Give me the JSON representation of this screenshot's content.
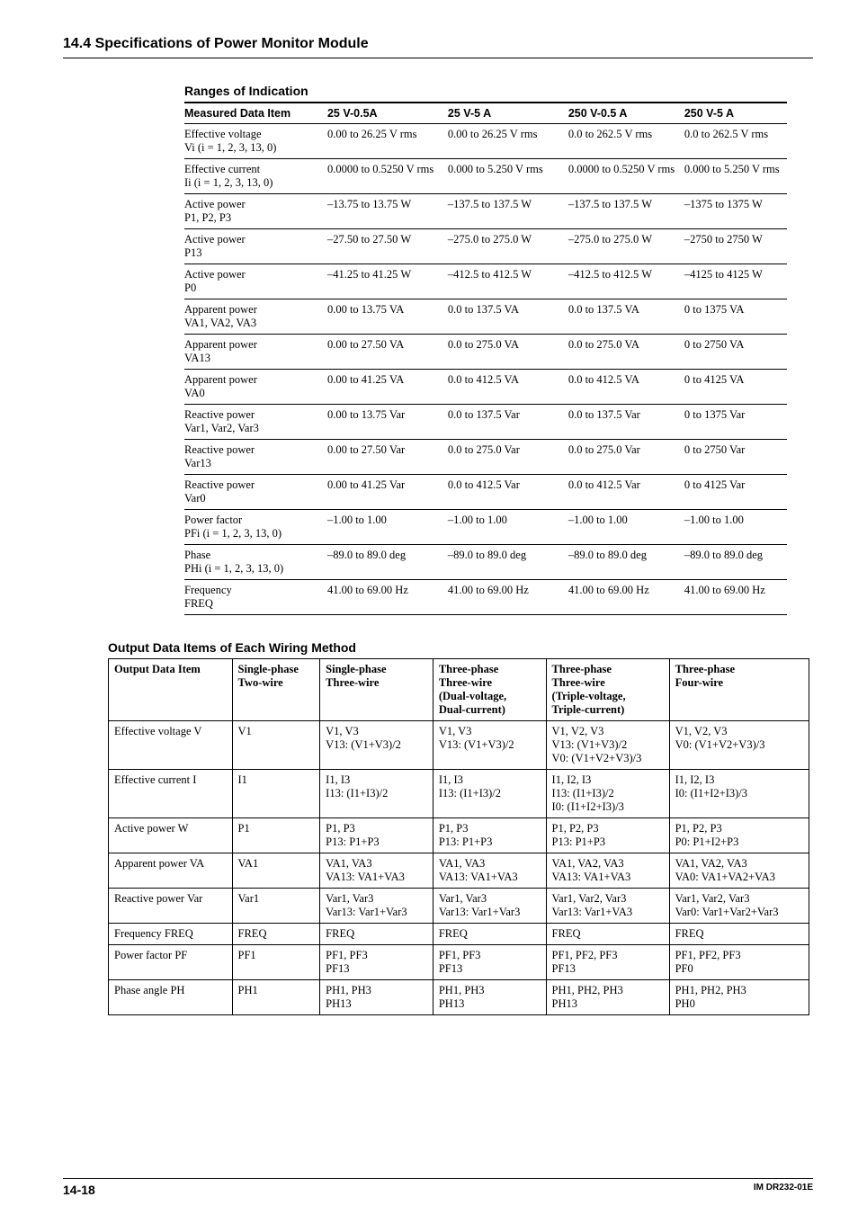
{
  "section_title": "14.4  Specifications of Power Monitor Module",
  "ranges_title": "Ranges of Indication",
  "ranges_table": {
    "columns": [
      "Measured Data Item",
      "25 V-0.5A",
      "25 V-5 A",
      "250 V-0.5 A",
      "250 V-5 A"
    ],
    "rows": [
      [
        "Effective voltage\nVi (i = 1, 2, 3, 13, 0)",
        "0.00 to 26.25 V rms",
        "0.00 to 26.25 V rms",
        "0.0 to 262.5 V rms",
        "0.0 to 262.5 V rms"
      ],
      [
        "Effective current\nIi (i = 1, 2, 3, 13, 0)",
        "0.0000 to 0.5250 V rms",
        "0.000 to 5.250 V rms",
        "0.0000 to 0.5250 V rms",
        "0.000 to 5.250 V rms"
      ],
      [
        "Active power\nP1, P2, P3",
        "–13.75 to 13.75 W",
        "–137.5 to 137.5 W",
        "–137.5 to 137.5 W",
        "–1375 to 1375 W"
      ],
      [
        "Active power\nP13",
        "–27.50 to 27.50 W",
        "–275.0 to 275.0 W",
        "–275.0 to 275.0 W",
        "–2750 to 2750 W"
      ],
      [
        "Active power\nP0",
        "–41.25 to 41.25 W",
        "–412.5 to 412.5 W",
        "–412.5 to 412.5 W",
        "–4125 to 4125 W"
      ],
      [
        "Apparent power\nVA1, VA2, VA3",
        "0.00 to 13.75 VA",
        "0.0 to 137.5 VA",
        "0.0 to 137.5 VA",
        "0 to 1375 VA"
      ],
      [
        "Apparent power\nVA13",
        "0.00 to 27.50 VA",
        "0.0 to 275.0 VA",
        "0.0 to 275.0 VA",
        "0 to 2750 VA"
      ],
      [
        "Apparent power\nVA0",
        "0.00 to 41.25 VA",
        "0.0 to 412.5 VA",
        "0.0 to 412.5 VA",
        "0 to 4125 VA"
      ],
      [
        "Reactive power\nVar1, Var2, Var3",
        "0.00 to 13.75 Var",
        "0.0 to 137.5 Var",
        "0.0 to 137.5 Var",
        "0 to 1375 Var"
      ],
      [
        "Reactive power\nVar13",
        "0.00 to 27.50 Var",
        "0.0 to 275.0 Var",
        "0.0 to 275.0 Var",
        "0 to 2750 Var"
      ],
      [
        "Reactive power\nVar0",
        "0.00 to 41.25 Var",
        "0.0 to 412.5 Var",
        "0.0 to 412.5 Var",
        "0 to 4125 Var"
      ],
      [
        "Power factor\nPFi (i = 1, 2, 3, 13, 0)",
        "–1.00 to 1.00",
        "–1.00 to 1.00",
        "–1.00 to 1.00",
        "–1.00 to 1.00"
      ],
      [
        "Phase\nPHi (i = 1, 2, 3, 13, 0)",
        "–89.0 to 89.0 deg",
        "–89.0 to 89.0 deg",
        "–89.0 to 89.0 deg",
        "–89.0 to 89.0 deg"
      ],
      [
        "Frequency\nFREQ",
        "41.00 to 69.00 Hz",
        "41.00 to 69.00 Hz",
        "41.00 to 69.00 Hz",
        "41.00 to 69.00 Hz"
      ]
    ]
  },
  "output_title": "Output Data Items of Each Wiring Method",
  "output_table": {
    "columns": [
      "Output Data Item",
      "Single-phase\nTwo-wire",
      "Single-phase\nThree-wire",
      "Three-phase\nThree-wire\n(Dual-voltage,\nDual-current)",
      "Three-phase\nThree-wire\n(Triple-voltage,\nTriple-current)",
      "Three-phase\nFour-wire"
    ],
    "rows": [
      [
        "Effective voltage V",
        "V1",
        "V1, V3\nV13:  (V1+V3)/2",
        "V1, V3\nV13:  (V1+V3)/2",
        "V1, V2, V3\nV13:  (V1+V3)/2\nV0:  (V1+V2+V3)/3",
        "V1, V2, V3\nV0:  (V1+V2+V3)/3"
      ],
      [
        "Effective current I",
        "I1",
        "I1, I3\nI13:  (I1+I3)/2",
        "I1, I3\nI13:  (I1+I3)/2",
        "I1, I2, I3\nI13:  (I1+I3)/2\nI0:  (I1+I2+I3)/3",
        "I1, I2, I3\nI0:  (I1+I2+I3)/3"
      ],
      [
        "Active power W",
        "P1",
        "P1, P3\nP13:  P1+P3",
        "P1, P3\nP13:  P1+P3",
        "P1, P2, P3\nP13:  P1+P3",
        "P1, P2, P3\nP0:  P1+I2+P3"
      ],
      [
        "Apparent power VA",
        "VA1",
        "VA1, VA3\nVA13:  VA1+VA3",
        "VA1, VA3\nVA13:  VA1+VA3",
        "VA1, VA2, VA3\nVA13:  VA1+VA3",
        "VA1, VA2, VA3\nVA0:  VA1+VA2+VA3"
      ],
      [
        "Reactive power Var",
        "Var1",
        "Var1, Var3\nVar13:  Var1+Var3",
        "Var1, Var3\nVar13:  Var1+Var3",
        "Var1, Var2, Var3\nVar13:  Var1+VA3",
        "Var1, Var2, Var3\nVar0:  Var1+Var2+Var3"
      ],
      [
        "Frequency FREQ",
        "FREQ",
        "FREQ",
        "FREQ",
        "FREQ",
        "FREQ"
      ],
      [
        "Power factor PF",
        "PF1",
        "PF1, PF3\nPF13",
        "PF1, PF3\nPF13",
        "PF1, PF2, PF3\nPF13",
        "PF1, PF2, PF3\nPF0"
      ],
      [
        "Phase angle PH",
        "PH1",
        "PH1, PH3\nPH13",
        "PH1, PH3\nPH13",
        "PH1, PH2, PH3\nPH13",
        "PH1, PH2, PH3\nPH0"
      ]
    ]
  },
  "footer": {
    "page": "14-18",
    "doc": "IM DR232-01E"
  }
}
